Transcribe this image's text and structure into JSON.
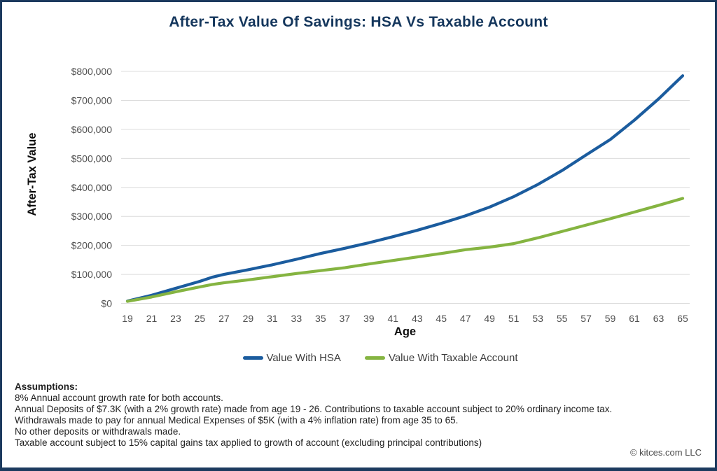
{
  "title": {
    "text": "After-Tax Value Of Savings: HSA Vs Taxable Account",
    "color": "#14365c"
  },
  "frame": {
    "border_color": "#1c3a5e"
  },
  "chart_data": {
    "type": "line",
    "title": "After-Tax Value Of Savings: HSA Vs Taxable Account",
    "xlabel": "Age",
    "ylabel": "After-Tax Value",
    "xlim": [
      19,
      65
    ],
    "ylim": [
      0,
      800000
    ],
    "grid": "horizontal",
    "gridline_color": "#dcdcdc",
    "legend_position": "bottom",
    "x_ticks": [
      19,
      21,
      23,
      25,
      27,
      29,
      31,
      33,
      35,
      37,
      39,
      41,
      43,
      45,
      47,
      49,
      51,
      53,
      55,
      57,
      59,
      61,
      63,
      65
    ],
    "y_tick_values": [
      0,
      100000,
      200000,
      300000,
      400000,
      500000,
      600000,
      700000,
      800000
    ],
    "y_tick_labels": [
      "$0",
      "$100,000",
      "$200,000",
      "$300,000",
      "$400,000",
      "$500,000",
      "$600,000",
      "$700,000",
      "$800,000"
    ],
    "x": [
      19,
      21,
      23,
      25,
      26,
      27,
      29,
      31,
      33,
      35,
      37,
      39,
      41,
      43,
      45,
      47,
      49,
      51,
      53,
      55,
      57,
      59,
      61,
      63,
      65
    ],
    "series": [
      {
        "name": "Value With HSA",
        "color": "#1b5c9e",
        "values": [
          8000,
          28000,
          52000,
          76000,
          90000,
          100000,
          116000,
          133000,
          152000,
          172000,
          190000,
          209000,
          230000,
          252000,
          276000,
          302000,
          332000,
          368000,
          410000,
          458000,
          512000,
          565000,
          632000,
          705000,
          785000
        ]
      },
      {
        "name": "Value With Taxable Account",
        "color": "#85b441",
        "values": [
          7000,
          22000,
          40000,
          57000,
          65000,
          71000,
          81000,
          92000,
          103000,
          113000,
          123000,
          136000,
          148000,
          160000,
          172000,
          185000,
          194000,
          206000,
          226000,
          248000,
          270000,
          292000,
          315000,
          338000,
          362000
        ]
      }
    ]
  },
  "legend": {
    "items": [
      {
        "label": "Value With HSA",
        "color": "#1b5c9e"
      },
      {
        "label": "Value With Taxable Account",
        "color": "#85b441"
      }
    ]
  },
  "assumptions": {
    "heading": "Assumptions:",
    "lines": [
      "8% Annual account growth rate for both accounts.",
      "Annual Deposits of $7.3K (with a 2% growth rate) made from age 19 - 26. Contributions to taxable account subject to 20% ordinary income tax.",
      "Withdrawals made to pay for annual Medical Expenses of $5K (with a 4% inflation rate) from age 35 to 65.",
      "No other deposits or withdrawals made.",
      "Taxable account subject to 15% capital gains tax applied to growth of account (excluding principal contributions)"
    ]
  },
  "footer": {
    "copyright": "© kitces.com LLC"
  }
}
